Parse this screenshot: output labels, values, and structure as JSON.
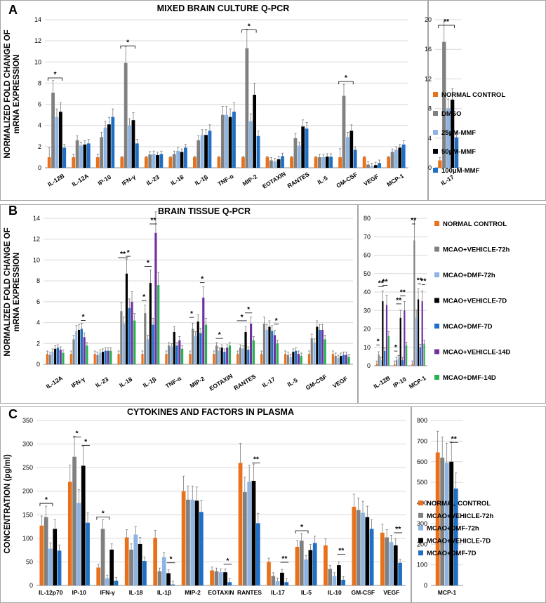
{
  "colors": {
    "normal": "#E8711C",
    "gray": "#808080",
    "lightblue": "#8EB4E3",
    "black": "#000000",
    "blue": "#1F6FC5",
    "purple": "#7030A0",
    "green": "#27B24F",
    "frame": "#A6A6A6",
    "grid": "#D9D9D9"
  },
  "chart_data": [
    {
      "id": "A-main",
      "type": "bar",
      "panel_letter": "A",
      "title": "MIXED BRAIN CULTURE Q-PCR",
      "ylabel": "NORMALIZED FOLD CHANGE OF mRNA EXPRESSION",
      "ylim": [
        0,
        14
      ],
      "yticks": [
        0,
        2,
        4,
        6,
        8,
        10,
        12,
        14
      ],
      "categories": [
        "IL-12B",
        "IL-12A",
        "IP-10",
        "IFN-γ",
        "IL-23",
        "IL-18",
        "IL-1β",
        "TNF-α",
        "MIP-2",
        "EOTAXIN",
        "RANTES",
        "IL-5",
        "GM-CSF",
        "VEGF",
        "MCP-1"
      ],
      "series": [
        {
          "name": "NORMAL CONTROL",
          "color": "normal",
          "values": [
            1,
            1,
            1,
            1,
            1,
            1,
            1,
            1,
            1,
            1,
            1,
            1,
            1,
            1,
            1
          ],
          "errors": [
            0.9,
            0.3,
            0.3,
            0.1,
            0.1,
            0.1,
            0.1,
            0.1,
            0.1,
            0.1,
            0.1,
            0.1,
            0.8,
            0.1,
            0.1
          ]
        },
        {
          "name": "DMSO",
          "color": "gray",
          "values": [
            7.1,
            2.6,
            2.9,
            9.9,
            1.25,
            1.3,
            2.6,
            5,
            11.3,
            0.7,
            2.8,
            1.0,
            6.8,
            0.3,
            1.5
          ]
        },
        {
          "name": "25μM-MMF",
          "color": "lightblue",
          "values": [
            4.8,
            2.1,
            3.8,
            4,
            1.3,
            1.6,
            3.1,
            5,
            4.4,
            0.6,
            2.1,
            1.0,
            2.9,
            0.15,
            1.7
          ]
        },
        {
          "name": "50μM-MMF",
          "color": "black",
          "values": [
            5.3,
            2.2,
            4.1,
            4.5,
            1.2,
            1.5,
            3.1,
            4.8,
            6.9,
            0.8,
            3.9,
            1.05,
            3.5,
            0.25,
            1.9
          ]
        },
        {
          "name": "100μM-MMF",
          "color": "blue",
          "values": [
            1.9,
            2.3,
            4.8,
            2.3,
            1.3,
            1.9,
            3.5,
            5.3,
            3.0,
            1.1,
            3.7,
            1.05,
            1.7,
            0.45,
            2.2
          ]
        }
      ],
      "significance": [
        {
          "cat": "IL-12B",
          "label": "*",
          "from": 0,
          "to": 3
        },
        {
          "cat": "IFN-γ",
          "label": "*",
          "from": 0,
          "to": 3
        },
        {
          "cat": "MIP-2",
          "label": "*",
          "from": 0,
          "to": 3
        },
        {
          "cat": "GM-CSF",
          "label": "*",
          "from": 0,
          "to": 3
        }
      ]
    },
    {
      "id": "A-side",
      "type": "bar",
      "ylim": [
        0,
        20
      ],
      "yticks": [
        0,
        4,
        8,
        12,
        16,
        20
      ],
      "categories": [
        "IL-17"
      ],
      "series": [
        {
          "name": "NORMAL CONTROL",
          "color": "normal",
          "values": [
            1
          ]
        },
        {
          "name": "DMSO",
          "color": "gray",
          "values": [
            17
          ]
        },
        {
          "name": "25μM-MMF",
          "color": "lightblue",
          "values": [
            8
          ]
        },
        {
          "name": "50μM-MMF",
          "color": "black",
          "values": [
            9.2
          ]
        },
        {
          "name": "100μM-MMF",
          "color": "blue",
          "values": [
            4.1
          ]
        }
      ],
      "significance": [
        {
          "cat": "IL-17",
          "label": "**",
          "from": 0,
          "to": 3
        }
      ]
    },
    {
      "id": "B-main",
      "type": "bar",
      "panel_letter": "B",
      "title": "BRAIN TISSUE Q-PCR",
      "ylabel": "NORMALIZED FOLD CHANGE OF mRNA EXPRESSION",
      "ylim": [
        0,
        14
      ],
      "yticks": [
        0,
        2,
        4,
        6,
        8,
        10,
        12,
        14
      ],
      "categories": [
        "IL-12A",
        "IFN-γ",
        "IL-23",
        "IL-18",
        "IL-1β",
        "TNF-α",
        "MIP-2",
        "EOTAXIN",
        "RANTES",
        "IL-17",
        "IL-5",
        "GM-CSF",
        "VEGF"
      ],
      "series": [
        {
          "name": "NORMAL CONTROL",
          "color": "normal",
          "values": [
            1,
            1,
            1,
            1,
            1,
            1,
            1,
            1,
            1,
            1,
            1,
            1,
            1
          ]
        },
        {
          "name": "MCAO+VEHICLE-72h",
          "color": "gray",
          "values": [
            0.9,
            2.4,
            0.9,
            5.1,
            4.9,
            1.8,
            3.4,
            1.8,
            1.6,
            3.9,
            0.9,
            2.5,
            0.8
          ]
        },
        {
          "name": "MCAO+DMF-72h",
          "color": "lightblue",
          "values": [
            1.2,
            3.2,
            1.1,
            3.9,
            2.4,
            1.7,
            2.7,
            1.3,
            1.5,
            3.3,
            0.7,
            2.1,
            0.6
          ]
        },
        {
          "name": "MCAO+VEHICLE-7D",
          "color": "black",
          "values": [
            1.5,
            3.3,
            1.2,
            8.7,
            7.8,
            3.1,
            4.1,
            1.6,
            3.1,
            3.6,
            1.2,
            3.6,
            0.8
          ]
        },
        {
          "name": "MCAO+DMF-7D",
          "color": "blue",
          "values": [
            1.6,
            3.4,
            1.3,
            5.4,
            3.8,
            1.8,
            3.0,
            1.2,
            1.4,
            3.2,
            1.3,
            3.3,
            0.9
          ]
        },
        {
          "name": "MCAO+VEHICLE-14D",
          "color": "purple",
          "values": [
            1.4,
            2.6,
            1.3,
            6,
            12.6,
            2.3,
            6.4,
            1.6,
            3.9,
            2.8,
            1.0,
            3.3,
            0.9
          ]
        },
        {
          "name": "MCAO+DMF-14D",
          "color": "green",
          "values": [
            1.1,
            1.8,
            1.3,
            4.2,
            7.6,
            1.5,
            3.8,
            1.8,
            2.3,
            2.0,
            0.8,
            2.4,
            0.7
          ]
        }
      ],
      "significance": [
        {
          "cat": "IFN-γ",
          "label": "*",
          "from": 4,
          "to": 5
        },
        {
          "cat": "IL-18",
          "label": "**",
          "from": 0,
          "to": 3
        },
        {
          "cat": "IL-18",
          "label": "*",
          "from": 3,
          "to": 4
        },
        {
          "cat": "IL-1β",
          "label": "*",
          "from": 0,
          "to": 1
        },
        {
          "cat": "IL-1β",
          "label": "*",
          "from": 1,
          "to": 3
        },
        {
          "cat": "IL-1β",
          "label": "**",
          "from": 3,
          "to": 5
        },
        {
          "cat": "MIP-2",
          "label": "*",
          "from": 0,
          "to": 1
        },
        {
          "cat": "MIP-2",
          "label": "*",
          "from": 4,
          "to": 5
        },
        {
          "cat": "EOTAXIN",
          "label": "*",
          "from": 1,
          "to": 3
        },
        {
          "cat": "RANTES",
          "label": "*",
          "from": 0,
          "to": 3
        },
        {
          "cat": "RANTES",
          "label": "*",
          "from": 3,
          "to": 5
        },
        {
          "cat": "IL-17",
          "label": "*",
          "from": 5,
          "to": 6
        }
      ]
    },
    {
      "id": "B-side",
      "type": "bar",
      "ylim": [
        0,
        80
      ],
      "yticks": [
        0,
        10,
        20,
        30,
        40,
        50,
        60,
        70,
        80
      ],
      "categories": [
        "IL-12B",
        "IP-10",
        "MCP-1"
      ],
      "series": [
        {
          "name": "NORMAL CONTROL",
          "color": "normal",
          "values": [
            1,
            1,
            1
          ]
        },
        {
          "name": "MCAO+VEHICLE-72h",
          "color": "gray",
          "values": [
            6,
            3,
            68
          ]
        },
        {
          "name": "MCAO+DMF-72h",
          "color": "lightblue",
          "values": [
            3,
            4,
            26
          ]
        },
        {
          "name": "MCAO+VEHICLE-7D",
          "color": "black",
          "values": [
            35,
            26,
            36
          ]
        },
        {
          "name": "MCAO+DMF-7D",
          "color": "blue",
          "values": [
            8,
            3,
            10
          ]
        },
        {
          "name": "MCAO+VEHICLE-14D",
          "color": "purple",
          "values": [
            33,
            30,
            35
          ]
        },
        {
          "name": "MCAO+DMF-14D",
          "color": "green",
          "values": [
            16,
            11,
            12
          ]
        }
      ],
      "significance": [
        {
          "cat": "IL-12B",
          "label": "*",
          "from": 0,
          "to": 1
        },
        {
          "cat": "IL-12B",
          "label": "**",
          "from": 1,
          "to": 3
        },
        {
          "cat": "IL-12B",
          "label": "**",
          "from": 3,
          "to": 5
        },
        {
          "cat": "IP-10",
          "label": "*",
          "from": 0,
          "to": 1
        },
        {
          "cat": "IP-10",
          "label": "**",
          "from": 1,
          "to": 3
        },
        {
          "cat": "IP-10",
          "label": "**",
          "from": 3,
          "to": 5
        },
        {
          "cat": "MCP-1",
          "label": "**",
          "from": 0,
          "to": 1
        },
        {
          "cat": "MCP-1",
          "label": "**",
          "from": 3,
          "to": 4
        },
        {
          "cat": "MCP-1",
          "label": "**",
          "from": 5,
          "to": 6
        }
      ]
    },
    {
      "id": "C-main",
      "type": "bar",
      "panel_letter": "C",
      "title": "CYTOKINES AND FACTORS IN PLASMA",
      "ylabel": "CONCENTRATION (pg/ml)",
      "ylim": [
        0,
        350
      ],
      "yticks": [
        0,
        50,
        100,
        150,
        200,
        250,
        300,
        350
      ],
      "categories": [
        "IL-12p70",
        "IP-10",
        "IFN-γ",
        "IL-18",
        "IL-1β",
        "MIP-2",
        "EOTAXIN",
        "RANTES",
        "IL-17",
        "IL-5",
        "IL-10",
        "GM-CSF",
        "VEGF"
      ],
      "series": [
        {
          "name": "NORMAL CONTROL",
          "color": "normal",
          "values": [
            127,
            220,
            38,
            102,
            101,
            200,
            32,
            260,
            50,
            82,
            85,
            167,
            112
          ]
        },
        {
          "name": "MCAO+VEHICLE-72h",
          "color": "gray",
          "values": [
            145,
            273,
            120,
            76,
            30,
            182,
            30,
            198,
            20,
            95,
            35,
            160,
            102
          ]
        },
        {
          "name": "MCAO+DMF-72h",
          "color": "lightblue",
          "values": [
            78,
            175,
            15,
            108,
            60,
            182,
            28,
            220,
            9,
            55,
            20,
            154,
            92
          ]
        },
        {
          "name": "MCAO+VEHICLE-7D",
          "color": "black",
          "values": [
            120,
            254,
            76,
            88,
            26,
            180,
            28,
            222,
            27,
            75,
            43,
            145,
            85
          ]
        },
        {
          "name": "MCAO+DMF-7D",
          "color": "blue",
          "values": [
            74,
            133,
            10,
            52,
            2,
            156,
            7,
            132,
            7,
            90,
            12,
            120,
            48
          ]
        }
      ],
      "significance": [
        {
          "cat": "IL-12p70",
          "label": "*",
          "from": 0,
          "to": 2
        },
        {
          "cat": "IP-10",
          "label": "*",
          "from": 1,
          "to": 2
        },
        {
          "cat": "IP-10",
          "label": "*",
          "from": 3,
          "to": 4
        },
        {
          "cat": "IFN-γ",
          "label": "*",
          "from": 0,
          "to": 2
        },
        {
          "cat": "IL-1β",
          "label": "*",
          "from": 3,
          "to": 4
        },
        {
          "cat": "EOTAXIN",
          "label": "*",
          "from": 3,
          "to": 4
        },
        {
          "cat": "RANTES",
          "label": "**",
          "from": 3,
          "to": 4
        },
        {
          "cat": "IL-17",
          "label": "**",
          "from": 3,
          "to": 4
        },
        {
          "cat": "IL-5",
          "label": "*",
          "from": 0,
          "to": 2
        },
        {
          "cat": "IL-10",
          "label": "**",
          "from": 3,
          "to": 4
        },
        {
          "cat": "VEGF",
          "label": "**",
          "from": 3,
          "to": 4
        }
      ]
    },
    {
      "id": "C-side",
      "type": "bar",
      "ylim": [
        0,
        800
      ],
      "yticks": [
        0,
        100,
        200,
        300,
        400,
        500,
        600,
        700,
        800
      ],
      "categories": [
        "MCP-1"
      ],
      "series": [
        {
          "name": "NORMAL CONTROL",
          "color": "normal",
          "values": [
            645
          ]
        },
        {
          "name": "MCAO+VEHICLE-72h",
          "color": "gray",
          "values": [
            620
          ]
        },
        {
          "name": "MCAO+DMF-72h",
          "color": "lightblue",
          "values": [
            595
          ]
        },
        {
          "name": "MCAO+VEHICLE-7D",
          "color": "black",
          "values": [
            600
          ]
        },
        {
          "name": "MCAO+DMF-7D",
          "color": "blue",
          "values": [
            470
          ]
        }
      ],
      "significance": [
        {
          "cat": "MCP-1",
          "label": "**",
          "from": 3,
          "to": 4
        }
      ]
    }
  ],
  "legends": [
    {
      "id": "A",
      "items": [
        {
          "label": "NORMAL CONTROL",
          "color": "normal"
        },
        {
          "label": "DMSO",
          "color": "gray"
        },
        {
          "label": "25μM-MMF",
          "color": "lightblue"
        },
        {
          "label": "50μM-MMF",
          "color": "black"
        },
        {
          "label": "100μM-MMF",
          "color": "blue"
        }
      ]
    },
    {
      "id": "B",
      "items": [
        {
          "label": "NORMAL CONTROL",
          "color": "normal"
        },
        {
          "label": "MCAO+VEHICLE-72h",
          "color": "gray"
        },
        {
          "label": "MCAO+DMF-72h",
          "color": "lightblue"
        },
        {
          "label": "MCAO+VEHICLE-7D",
          "color": "black"
        },
        {
          "label": "MCAO+DMF-7D",
          "color": "blue"
        },
        {
          "label": "MCAO+VEHICLE-14D",
          "color": "purple"
        },
        {
          "label": "MCAO+DMF-14D",
          "color": "green"
        }
      ]
    },
    {
      "id": "C",
      "items": [
        {
          "label": "NORMAL CONTROL",
          "color": "normal"
        },
        {
          "label": "MCAO+VEHICLE-72h",
          "color": "gray"
        },
        {
          "label": "MCAO+DMF-72h",
          "color": "lightblue"
        },
        {
          "label": "MCAO+VEHICLE-7D",
          "color": "black"
        },
        {
          "label": "MCAO+DMF-7D",
          "color": "blue"
        }
      ]
    }
  ]
}
